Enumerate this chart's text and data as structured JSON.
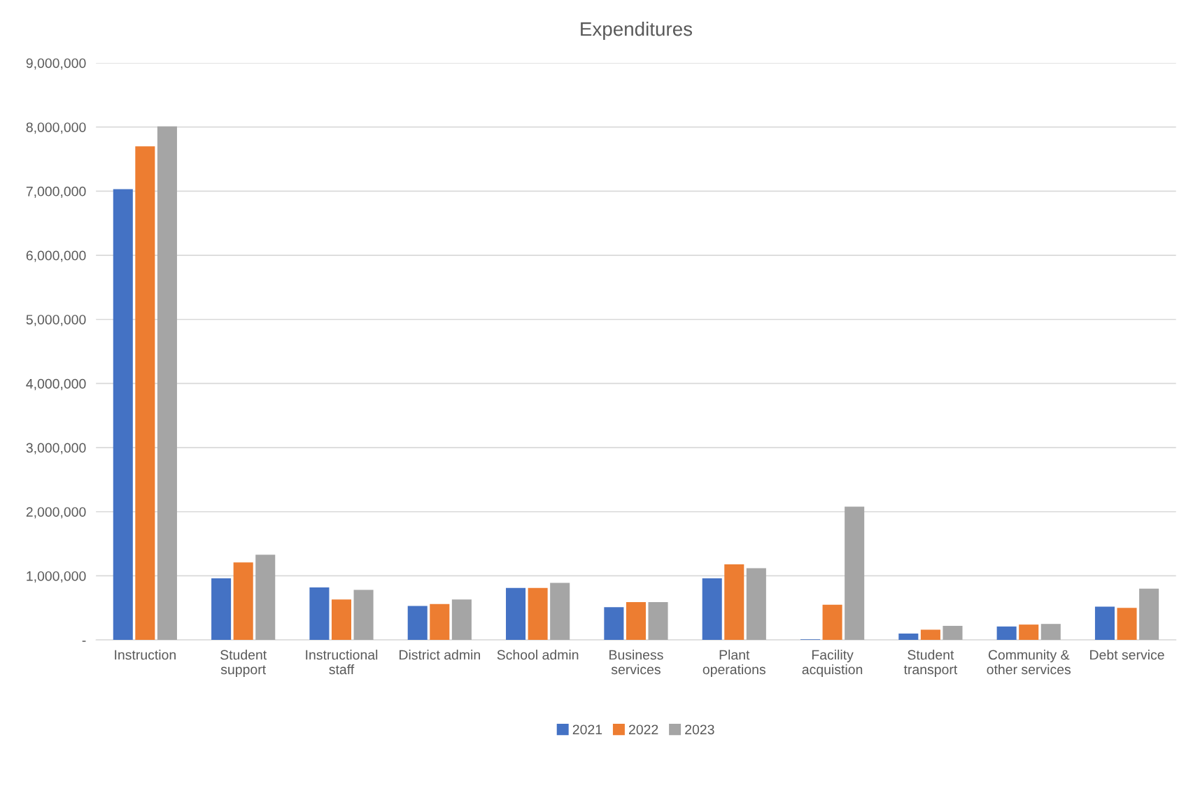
{
  "chart_data": {
    "type": "bar",
    "title": "Expenditures",
    "categories": [
      "Instruction",
      "Student\nsupport",
      "Instructional\nstaff",
      "District admin",
      "School admin",
      "Business\nservices",
      "Plant\noperations",
      "Facility\nacquistion",
      "Student\ntransport",
      "Community &\nother services",
      "Debt service"
    ],
    "series": [
      {
        "name": "2021",
        "color": "#4472c4",
        "values": [
          7030000,
          960000,
          820000,
          530000,
          810000,
          510000,
          960000,
          10000,
          100000,
          210000,
          520000
        ]
      },
      {
        "name": "2022",
        "color": "#ed7d31",
        "values": [
          7700000,
          1210000,
          630000,
          560000,
          810000,
          590000,
          1180000,
          550000,
          160000,
          240000,
          500000
        ]
      },
      {
        "name": "2023",
        "color": "#a5a5a5",
        "values": [
          8010000,
          1330000,
          780000,
          630000,
          890000,
          590000,
          1120000,
          2080000,
          220000,
          250000,
          800000
        ]
      }
    ],
    "ylim": [
      0,
      9000000
    ],
    "yticks": [
      {
        "value": 0,
        "label": "-"
      },
      {
        "value": 1000000,
        "label": "1,000,000"
      },
      {
        "value": 2000000,
        "label": "2,000,000"
      },
      {
        "value": 3000000,
        "label": "3,000,000"
      },
      {
        "value": 4000000,
        "label": "4,000,000"
      },
      {
        "value": 5000000,
        "label": "5,000,000"
      },
      {
        "value": 6000000,
        "label": "6,000,000"
      },
      {
        "value": 7000000,
        "label": "7,000,000"
      },
      {
        "value": 8000000,
        "label": "8,000,000"
      },
      {
        "value": 9000000,
        "label": "9,000,000"
      }
    ],
    "grid": "y",
    "legend": "bottom"
  }
}
